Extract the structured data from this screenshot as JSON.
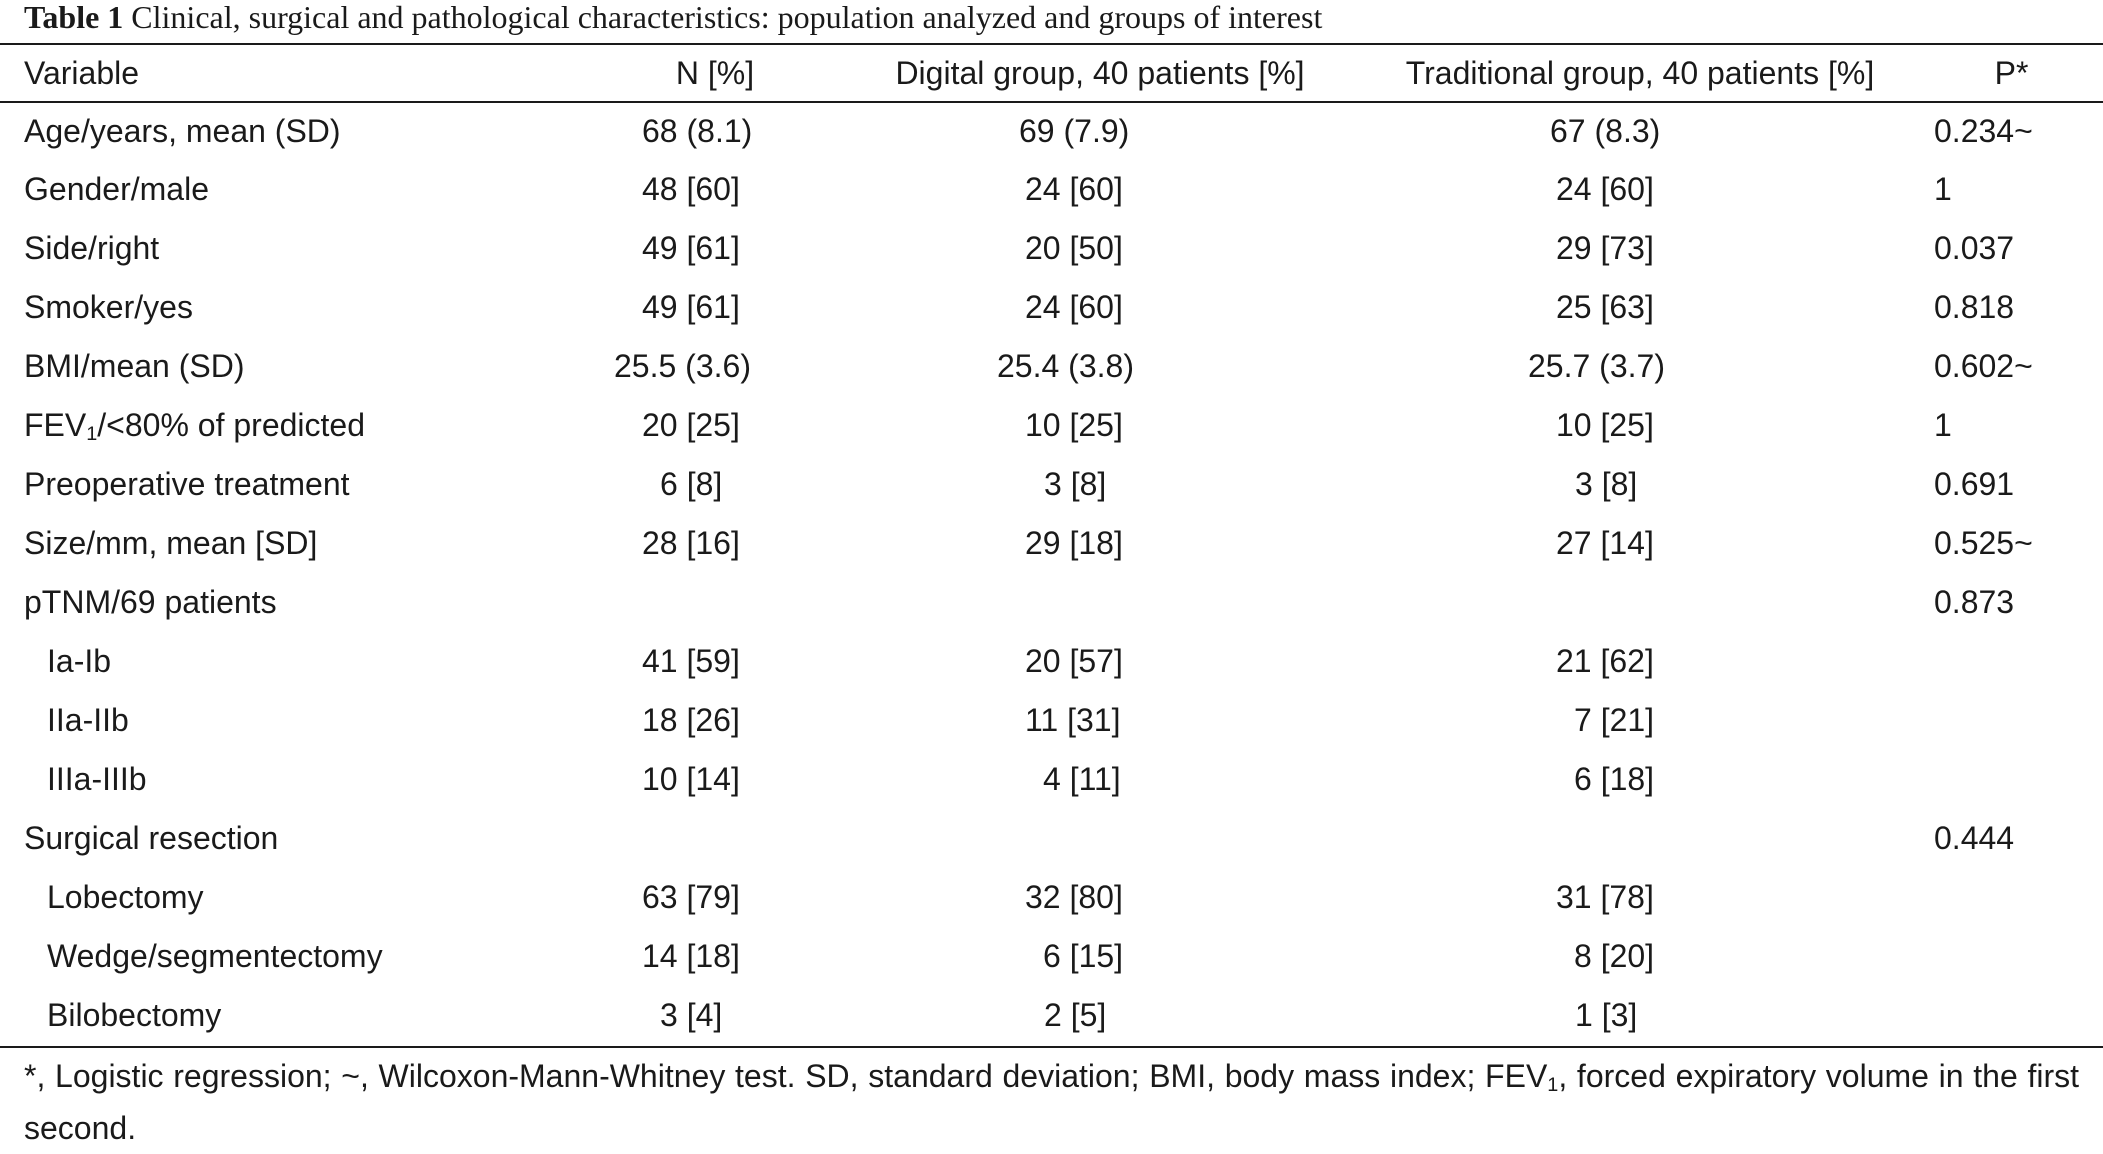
{
  "caption": {
    "label": "Table 1",
    "text": "Clinical, surgical and pathological characteristics: population analyzed and groups of interest"
  },
  "columns": [
    "Variable",
    "N [%]",
    "Digital group, 40 patients [%]",
    "Traditional group, 40 patients [%]",
    "P*"
  ],
  "rows": [
    {
      "variable": "Age/years, mean (SD)",
      "n": "68 (8.1)",
      "digital": "69 (7.9)",
      "traditional": "67 (8.3)",
      "p": "0.234~"
    },
    {
      "variable": "Gender/male",
      "n": "48 [60]",
      "digital": "24 [60]",
      "traditional": "24 [60]",
      "p": "1"
    },
    {
      "variable": "Side/right",
      "n": "49 [61]",
      "digital": "20 [50]",
      "traditional": "29 [73]",
      "p": "0.037"
    },
    {
      "variable": "Smoker/yes",
      "n": "49 [61]",
      "digital": "24 [60]",
      "traditional": "25 [63]",
      "p": "0.818"
    },
    {
      "variable": "BMI/mean (SD)",
      "n": "25.5 (3.6)",
      "digital": "25.4 (3.8)",
      "traditional": "25.7 (3.7)",
      "p": "0.602~"
    },
    {
      "variable_pre": "FEV",
      "variable_sub": "1",
      "variable_post": "/<80% of predicted",
      "n": "20 [25]",
      "digital": "10 [25]",
      "traditional": "10 [25]",
      "p": "1"
    },
    {
      "variable": "Preoperative treatment",
      "n": "6 [8]",
      "digital": "3 [8]",
      "traditional": "3 [8]",
      "p": "0.691"
    },
    {
      "variable": "Size/mm, mean [SD]",
      "n": "28 [16]",
      "digital": "29 [18]",
      "traditional": "27 [14]",
      "p": "0.525~"
    },
    {
      "variable": "pTNM/69 patients",
      "n": "",
      "digital": "",
      "traditional": "",
      "p": "0.873"
    },
    {
      "variable": "Ia-Ib",
      "n": "41 [59]",
      "digital": "20 [57]",
      "traditional": "21 [62]",
      "p": ""
    },
    {
      "variable": "IIa-IIb",
      "n": "18 [26]",
      "digital": "11 [31]",
      "traditional": "7 [21]",
      "p": ""
    },
    {
      "variable": "IIIa-IIIb",
      "n": "10 [14]",
      "digital": "4 [11]",
      "traditional": "6 [18]",
      "p": ""
    },
    {
      "variable": "Surgical resection",
      "n": "",
      "digital": "",
      "traditional": "",
      "p": "0.444"
    },
    {
      "variable": "Lobectomy",
      "n": "63 [79]",
      "digital": "32 [80]",
      "traditional": "31 [78]",
      "p": ""
    },
    {
      "variable": "Wedge/segmentectomy",
      "n": "14 [18]",
      "digital": "6 [15]",
      "traditional": "8 [20]",
      "p": ""
    },
    {
      "variable": "Bilobectomy",
      "n": "3 [4]",
      "digital": "2 [5]",
      "traditional": "1 [3]",
      "p": ""
    }
  ],
  "footnote": {
    "pre": "*, Logistic regression; ~, Wilcoxon-Mann-Whitney test. SD, standard deviation; BMI, body mass index; FEV",
    "sub": "1",
    "post": ", forced expiratory volume in the first second."
  }
}
